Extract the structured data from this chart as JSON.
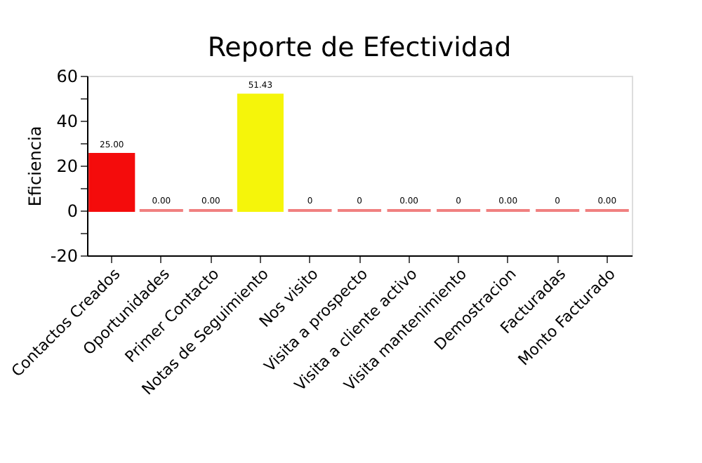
{
  "chart_data": {
    "type": "bar",
    "title": "Reporte de Efectividad",
    "ylabel": "Eficiencia",
    "categories": [
      "Contactos Creados",
      "Oportunidades",
      "Primer Contacto",
      "Notas de Seguimiento",
      "Nos visito",
      "Visita a prospecto",
      "Visita a cliente activo",
      "Visita mantenimiento",
      "Demostracion",
      "Facturadas",
      "Monto Facturado"
    ],
    "values": [
      25.0,
      0,
      0,
      51.43,
      0,
      0,
      0,
      0,
      0,
      0,
      0
    ],
    "colors": [
      "#f40c0c",
      "#f08080",
      "#f08080",
      "#f5f50a",
      "#f08080",
      "#f08080",
      "#f08080",
      "#f08080",
      "#f08080",
      "#f08080",
      "#f08080"
    ],
    "value_labels": [
      "25.00",
      "0.00",
      "0.00",
      "51.43",
      "0",
      "0",
      "0.00",
      "0",
      "0.00",
      "0",
      "0.00"
    ],
    "ylim": [
      -20,
      60
    ],
    "yticks": [
      -20,
      {
        "value": -10,
        "label": null
      },
      0,
      {
        "value": 10,
        "label": null
      },
      20,
      {
        "value": 30,
        "label": null
      },
      40,
      {
        "value": 50,
        "label": null
      },
      60
    ],
    "grid": false
  }
}
